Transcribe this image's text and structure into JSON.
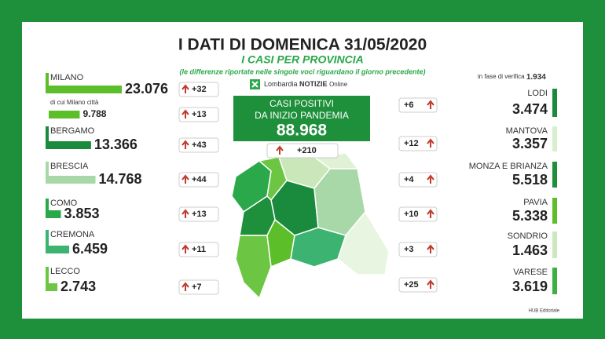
{
  "header": {
    "title": "I DATI DI DOMENICA 31/05/2020",
    "subtitle": "I CASI PER PROVINCIA",
    "note": "(le differenze riportate nelle singole voci riguardano il giorno precedente)"
  },
  "logo": {
    "text": "Lombardia",
    "brand": "NOTIZIE",
    "suffix": "Online"
  },
  "total": {
    "line1": "CASI POSITIVI",
    "line2": "DA INIZIO PANDEMIA",
    "value": "88.968",
    "delta": "+210"
  },
  "verification": {
    "label": "in fase di verifica",
    "value": "1.934"
  },
  "left": [
    {
      "name": "MILANO",
      "value": {
        "value": 23076,
        "label": "23.076"
      },
      "delta": "+32",
      "color": "#5cbf2a"
    },
    {
      "name": "di cui Milano città",
      "value": {
        "value": 9788,
        "label": "9.788"
      },
      "delta": "+13",
      "color": "#5cbf2a"
    },
    {
      "name": "BERGAMO",
      "value": {
        "value": 13366,
        "label": "13.366"
      },
      "delta": "+43",
      "color": "#1a8a3c"
    },
    {
      "name": "BRESCIA",
      "value": {
        "value": 14768,
        "label": "14.768"
      },
      "delta": "+44",
      "color": "#a8d8a8"
    },
    {
      "name": "COMO",
      "value": {
        "value": 3853,
        "label": "3.853"
      },
      "delta": "+13",
      "color": "#2aa84a"
    },
    {
      "name": "CREMONA",
      "value": {
        "value": 6459,
        "label": "6.459"
      },
      "delta": "+11",
      "color": "#3cb371"
    },
    {
      "name": "LECCO",
      "value": {
        "value": 2743,
        "label": "2.743"
      },
      "delta": "+7",
      "color": "#6cc644"
    }
  ],
  "right": [
    {
      "name": "LODI",
      "value": "3.474",
      "delta": "+6",
      "color": "#1a8a3c"
    },
    {
      "name": "MANTOVA",
      "value": "3.357",
      "delta": "+12",
      "color": "#d8eed0"
    },
    {
      "name": "MONZA E BRIANZA",
      "value": "5.518",
      "delta": "+4",
      "color": "#1e8f3a"
    },
    {
      "name": "PAVIA",
      "value": "5.338",
      "delta": "+10",
      "color": "#5cbf2a"
    },
    {
      "name": "SONDRIO",
      "value": "1.463",
      "delta": "+3",
      "color": "#cde8c0"
    },
    {
      "name": "VARESE",
      "value": "3.619",
      "delta": "+25",
      "color": "#3cb043"
    }
  ],
  "footer": "HUB Editoriale"
}
